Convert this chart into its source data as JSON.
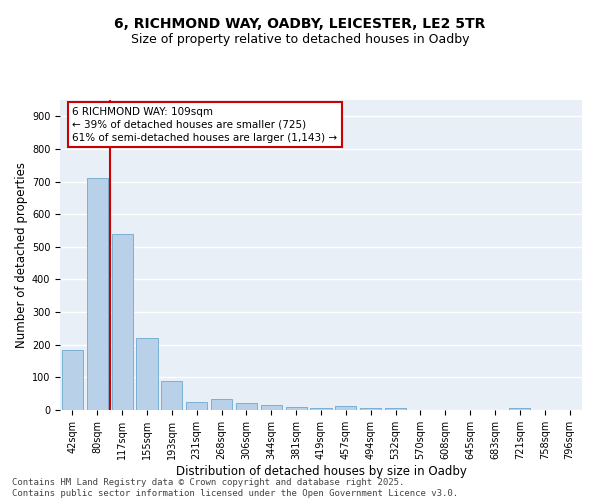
{
  "title_line1": "6, RICHMOND WAY, OADBY, LEICESTER, LE2 5TR",
  "title_line2": "Size of property relative to detached houses in Oadby",
  "xlabel": "Distribution of detached houses by size in Oadby",
  "ylabel": "Number of detached properties",
  "categories": [
    "42sqm",
    "80sqm",
    "117sqm",
    "155sqm",
    "193sqm",
    "231sqm",
    "268sqm",
    "306sqm",
    "344sqm",
    "381sqm",
    "419sqm",
    "457sqm",
    "494sqm",
    "532sqm",
    "570sqm",
    "608sqm",
    "645sqm",
    "683sqm",
    "721sqm",
    "758sqm",
    "796sqm"
  ],
  "values": [
    185,
    710,
    540,
    220,
    90,
    25,
    35,
    22,
    15,
    10,
    5,
    12,
    6,
    6,
    0,
    0,
    0,
    0,
    5,
    0,
    0
  ],
  "bar_color": "#b8d0e8",
  "bar_edge_color": "#7aafd4",
  "annotation_text": "6 RICHMOND WAY: 109sqm\n← 39% of detached houses are smaller (725)\n61% of semi-detached houses are larger (1,143) →",
  "annotation_box_color": "#ffffff",
  "annotation_box_edge": "#cc0000",
  "vline_color": "#cc0000",
  "vline_x_index": 1.5,
  "ylim": [
    0,
    950
  ],
  "yticks": [
    0,
    100,
    200,
    300,
    400,
    500,
    600,
    700,
    800,
    900
  ],
  "background_color": "#e8eff7",
  "grid_color": "#ffffff",
  "footer_line1": "Contains HM Land Registry data © Crown copyright and database right 2025.",
  "footer_line2": "Contains public sector information licensed under the Open Government Licence v3.0.",
  "title_fontsize": 10,
  "subtitle_fontsize": 9,
  "axis_label_fontsize": 8.5,
  "tick_fontsize": 7,
  "footer_fontsize": 6.5,
  "annotation_fontsize": 7.5
}
